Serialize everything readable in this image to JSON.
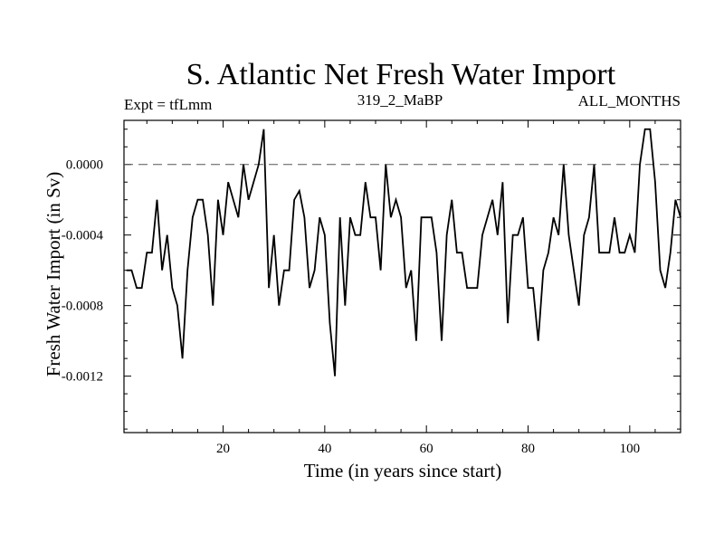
{
  "chart_data": {
    "type": "line",
    "title": "S. Atlantic Net Fresh Water Import",
    "subtitle_left": "Expt = tfLmm",
    "subtitle_center": "319_2_MaBP",
    "subtitle_right": "ALL_MONTHS",
    "xlabel": "Time (in years since start)",
    "ylabel": "Fresh Water Import (in Sv)",
    "xlim": [
      0.5,
      110
    ],
    "ylim": [
      -0.00152,
      0.00025
    ],
    "x_ticks": [
      20,
      40,
      60,
      80,
      100
    ],
    "x_tick_labels": [
      "20",
      "40",
      "60",
      "80",
      "100"
    ],
    "y_ticks": [
      0,
      -0.0004,
      -0.0008,
      -0.0012
    ],
    "y_tick_labels": [
      "0.0000",
      "-0.0004",
      "-0.0008",
      "-0.0012"
    ],
    "reference_line": {
      "y": 0,
      "style": "dashed"
    },
    "series": [
      {
        "name": "Net Fresh Water Import",
        "x_start": 1,
        "x_step": 1,
        "values": [
          -0.0006,
          -0.0006,
          -0.0007,
          -0.0007,
          -0.0005,
          -0.0005,
          -0.0002,
          -0.0006,
          -0.0004,
          -0.0007,
          -0.0008,
          -0.0011,
          -0.0006,
          -0.0003,
          -0.0002,
          -0.0002,
          -0.0004,
          -0.0008,
          -0.0002,
          -0.0004,
          -0.0001,
          -0.0002,
          -0.0003,
          0.0,
          -0.0002,
          -0.0001,
          0.0,
          0.0002,
          -0.0007,
          -0.0004,
          -0.0008,
          -0.0006,
          -0.0006,
          -0.0002,
          -0.00015,
          -0.0003,
          -0.0007,
          -0.0006,
          -0.0003,
          -0.0004,
          -0.0009,
          -0.0012,
          -0.0003,
          -0.0008,
          -0.0003,
          -0.0004,
          -0.0004,
          -0.0001,
          -0.0003,
          -0.0003,
          -0.0006,
          0.0,
          -0.0003,
          -0.0002,
          -0.0003,
          -0.0007,
          -0.0006,
          -0.001,
          -0.0003,
          -0.0003,
          -0.0003,
          -0.0005,
          -0.001,
          -0.0004,
          -0.0002,
          -0.0005,
          -0.0005,
          -0.0007,
          -0.0007,
          -0.0007,
          -0.0004,
          -0.0003,
          -0.0002,
          -0.0004,
          -0.0001,
          -0.0009,
          -0.0004,
          -0.0004,
          -0.0003,
          -0.0007,
          -0.0007,
          -0.001,
          -0.0006,
          -0.0005,
          -0.0003,
          -0.0004,
          0.0,
          -0.0004,
          -0.0006,
          -0.0008,
          -0.0004,
          -0.0003,
          0.0,
          -0.0005,
          -0.0005,
          -0.0005,
          -0.0003,
          -0.0005,
          -0.0005,
          -0.0004,
          -0.0005,
          0.0,
          0.0002,
          0.0002,
          -0.0001,
          -0.0006,
          -0.0007,
          -0.0005,
          -0.0002,
          -0.0003
        ]
      }
    ]
  }
}
